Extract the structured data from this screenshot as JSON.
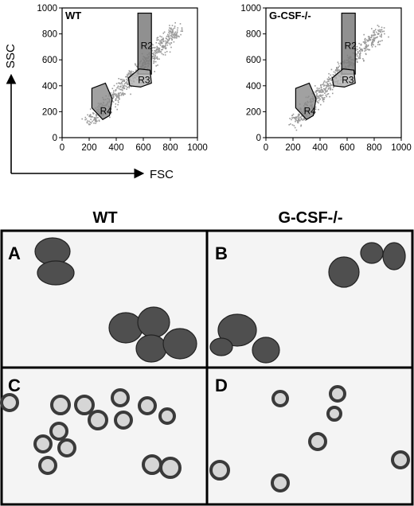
{
  "flow": {
    "y_axis_label": "SSC",
    "x_axis_label": "FSC",
    "plots": [
      {
        "label": "WT",
        "gates": [
          "R2",
          "R3",
          "R4"
        ],
        "x_ticks": [
          "0",
          "200",
          "400",
          "600",
          "800",
          "1000"
        ],
        "y_ticks": [
          "0",
          "200",
          "400",
          "600",
          "800",
          "1000"
        ]
      },
      {
        "label": "G-CSF-/-",
        "gates": [
          "R2",
          "R3",
          "R4"
        ],
        "x_ticks": [
          "0",
          "200",
          "400",
          "600",
          "800",
          "1000"
        ],
        "y_ticks": [
          "0",
          "200",
          "400",
          "600",
          "800",
          "1000"
        ]
      }
    ]
  },
  "micrographs": {
    "column_headers": [
      "WT",
      "G-CSF-/-"
    ],
    "panels": [
      {
        "label": "A"
      },
      {
        "label": "B"
      },
      {
        "label": "C"
      },
      {
        "label": "D"
      }
    ]
  },
  "chart_data": [
    {
      "type": "scatter",
      "title": "WT",
      "xlabel": "FSC",
      "ylabel": "SSC",
      "xlim": [
        0,
        1000
      ],
      "ylim": [
        0,
        1000
      ],
      "grid": false,
      "gates": [
        {
          "name": "R2",
          "shape": "rectangle",
          "x": [
            560,
            660
          ],
          "y": [
            490,
            960
          ]
        },
        {
          "name": "R3",
          "shape": "polygon",
          "points": [
            [
              490,
              460
            ],
            [
              570,
              530
            ],
            [
              650,
              520
            ],
            [
              660,
              420
            ],
            [
              580,
              390
            ],
            [
              500,
              400
            ]
          ]
        },
        {
          "name": "R4",
          "shape": "polygon",
          "points": [
            [
              220,
              380
            ],
            [
              320,
              420
            ],
            [
              370,
              300
            ],
            [
              350,
              170
            ],
            [
              300,
              140
            ],
            [
              220,
              230
            ]
          ]
        }
      ]
    },
    {
      "type": "scatter",
      "title": "G-CSF-/-",
      "xlabel": "FSC",
      "ylabel": "SSC",
      "xlim": [
        0,
        1000
      ],
      "ylim": [
        0,
        1000
      ],
      "grid": false,
      "gates": [
        {
          "name": "R2",
          "shape": "rectangle",
          "x": [
            560,
            660
          ],
          "y": [
            490,
            960
          ]
        },
        {
          "name": "R3",
          "shape": "polygon",
          "points": [
            [
              490,
              460
            ],
            [
              570,
              530
            ],
            [
              650,
              520
            ],
            [
              660,
              420
            ],
            [
              580,
              390
            ],
            [
              500,
              400
            ]
          ]
        },
        {
          "name": "R4",
          "shape": "polygon",
          "points": [
            [
              220,
              380
            ],
            [
              320,
              420
            ],
            [
              370,
              300
            ],
            [
              350,
              170
            ],
            [
              300,
              140
            ],
            [
              220,
              230
            ]
          ]
        }
      ]
    }
  ]
}
